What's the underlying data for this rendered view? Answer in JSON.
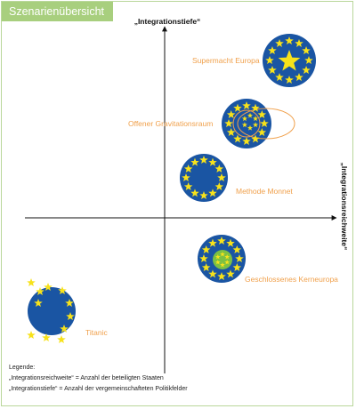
{
  "header": {
    "title": "Szenarienübersicht"
  },
  "axes": {
    "y_label": "„Integrationstiefe“",
    "x_label": "„Integrationsreichweite“"
  },
  "scenarios": [
    {
      "id": "supermacht",
      "label": "Supermacht Europa"
    },
    {
      "id": "gravitation",
      "label": "Offener Gravitationsraum"
    },
    {
      "id": "monnet",
      "label": "Methode Monnet"
    },
    {
      "id": "kerneuropa",
      "label": "Geschlossenes Kerneuropa"
    },
    {
      "id": "titanic",
      "label": "Titanic"
    }
  ],
  "legend": {
    "title": "Legende:",
    "line1": "„Integrationsreichweite“ = Anzahl der beteiligten Staaten",
    "line2": "„Integrationstiefe“ = Anzahl der vergemeinschafteten Politikfelder"
  },
  "colors": {
    "circle_blue": "#1a55a3",
    "star_yellow": "#f7e21b",
    "label_orange": "#f0a04b",
    "header_green": "#a8cf7e",
    "core_green": "#7cc043"
  }
}
